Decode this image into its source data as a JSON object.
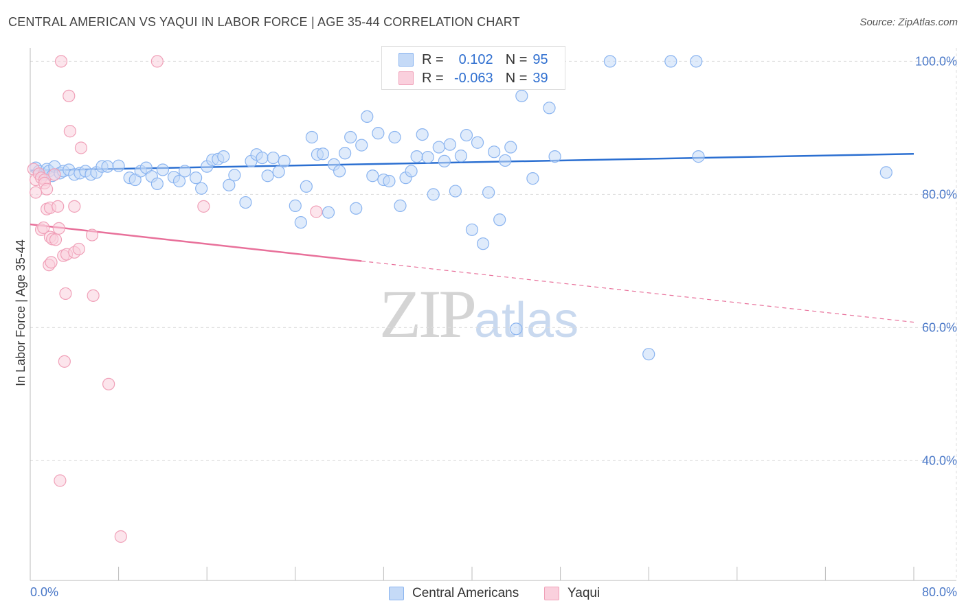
{
  "title": "CENTRAL AMERICAN VS YAQUI IN LABOR FORCE | AGE 35-44 CORRELATION CHART",
  "source": "Source: ZipAtlas.com",
  "legend_top": [
    {
      "r_label": "R =",
      "r_value": "0.102",
      "n_label": "N =",
      "n_value": "95",
      "color": "#8ab4f0",
      "fill": "#c5daf7"
    },
    {
      "r_label": "R =",
      "r_value": "-0.063",
      "n_label": "N =",
      "n_value": "39",
      "color": "#f0a0b8",
      "fill": "#fad0dd"
    }
  ],
  "legend_bottom": [
    "Central Americans",
    "Yaqui"
  ],
  "watermark": {
    "zip": "ZIP",
    "atlas": "atlas"
  },
  "colors": {
    "blue_stroke": "#8ab4f0",
    "blue_fill": "#c5daf7",
    "blue_line": "#2b6fd1",
    "pink_stroke": "#f0a0b8",
    "pink_fill": "#fad0dd",
    "pink_line": "#e8709a",
    "grid": "#dddddd",
    "tick_text": "#4a78c8"
  },
  "chart_data": {
    "type": "scatter",
    "title": "CENTRAL AMERICAN VS YAQUI IN LABOR FORCE | AGE 35-44 CORRELATION CHART",
    "xlabel": "",
    "ylabel": "In Labor Force | Age 35-44",
    "xlim": [
      0,
      80
    ],
    "ylim": [
      22,
      102
    ],
    "x_ticks_labels": [
      "0.0%",
      "80.0%"
    ],
    "y_ticks": [
      40,
      60,
      80,
      100
    ],
    "y_ticks_labels": [
      "40.0%",
      "60.0%",
      "80.0%",
      "100.0%"
    ],
    "grid": true,
    "series": [
      {
        "name": "Central Americans",
        "r": 0.102,
        "n": 95,
        "trend": {
          "x0": 0,
          "y0": 83.6,
          "x1": 80,
          "y1": 86.1,
          "dashed_from": null
        },
        "points": [
          [
            0.5,
            84.0
          ],
          [
            0.8,
            83.5
          ],
          [
            1.2,
            83.0
          ],
          [
            1.5,
            83.8
          ],
          [
            1.7,
            83.5
          ],
          [
            2.0,
            82.8
          ],
          [
            2.2,
            84.2
          ],
          [
            2.7,
            83.2
          ],
          [
            3.0,
            83.5
          ],
          [
            3.5,
            83.7
          ],
          [
            4.0,
            83.0
          ],
          [
            4.5,
            83.2
          ],
          [
            5.0,
            83.5
          ],
          [
            5.5,
            83.0
          ],
          [
            6.0,
            83.3
          ],
          [
            6.5,
            84.2
          ],
          [
            7.0,
            84.2
          ],
          [
            8.0,
            84.3
          ],
          [
            9.0,
            82.5
          ],
          [
            9.5,
            82.2
          ],
          [
            10.0,
            83.5
          ],
          [
            10.5,
            84.0
          ],
          [
            11.0,
            82.7
          ],
          [
            11.5,
            81.6
          ],
          [
            12.0,
            83.7
          ],
          [
            13.0,
            82.6
          ],
          [
            13.5,
            82.0
          ],
          [
            14.0,
            83.5
          ],
          [
            15.0,
            82.5
          ],
          [
            15.5,
            80.9
          ],
          [
            16.0,
            84.2
          ],
          [
            16.5,
            85.2
          ],
          [
            17.0,
            85.3
          ],
          [
            17.5,
            85.7
          ],
          [
            18.0,
            81.4
          ],
          [
            18.5,
            82.9
          ],
          [
            19.5,
            78.8
          ],
          [
            20.0,
            85.0
          ],
          [
            20.5,
            86.0
          ],
          [
            21.0,
            85.5
          ],
          [
            21.5,
            82.8
          ],
          [
            22.0,
            85.5
          ],
          [
            22.5,
            83.4
          ],
          [
            23.0,
            85.0
          ],
          [
            24.0,
            78.3
          ],
          [
            24.5,
            75.8
          ],
          [
            25.0,
            81.2
          ],
          [
            25.5,
            88.6
          ],
          [
            26.0,
            86.0
          ],
          [
            26.5,
            86.1
          ],
          [
            27.0,
            77.3
          ],
          [
            27.5,
            84.5
          ],
          [
            28.0,
            83.5
          ],
          [
            28.5,
            86.2
          ],
          [
            29.0,
            88.6
          ],
          [
            29.5,
            77.9
          ],
          [
            30.0,
            87.4
          ],
          [
            30.5,
            91.7
          ],
          [
            31.0,
            82.8
          ],
          [
            31.5,
            89.2
          ],
          [
            32.0,
            82.2
          ],
          [
            32.5,
            82.0
          ],
          [
            33.0,
            88.6
          ],
          [
            33.5,
            78.3
          ],
          [
            34.0,
            82.5
          ],
          [
            34.5,
            83.5
          ],
          [
            35.0,
            85.7
          ],
          [
            35.5,
            89.0
          ],
          [
            36.0,
            85.6
          ],
          [
            36.5,
            80.0
          ],
          [
            37.0,
            87.1
          ],
          [
            37.5,
            85.0
          ],
          [
            38.0,
            87.5
          ],
          [
            38.5,
            80.5
          ],
          [
            39.0,
            85.8
          ],
          [
            39.5,
            88.9
          ],
          [
            40.0,
            74.7
          ],
          [
            40.5,
            87.8
          ],
          [
            41.0,
            72.6
          ],
          [
            41.5,
            80.3
          ],
          [
            42.0,
            86.4
          ],
          [
            42.5,
            76.2
          ],
          [
            43.0,
            85.1
          ],
          [
            43.5,
            87.1
          ],
          [
            44.0,
            59.8
          ],
          [
            44.5,
            94.8
          ],
          [
            45.5,
            82.4
          ],
          [
            47.0,
            93.0
          ],
          [
            47.5,
            85.7
          ],
          [
            52.5,
            100.0
          ],
          [
            56.0,
            56.0
          ],
          [
            58.0,
            100.0
          ],
          [
            60.3,
            100.0
          ],
          [
            60.5,
            85.7
          ],
          [
            77.5,
            83.3
          ]
        ]
      },
      {
        "name": "Yaqui",
        "r": -0.063,
        "n": 39,
        "trend": {
          "x0": 0,
          "y0": 75.5,
          "x1": 80,
          "y1": 60.8,
          "dashed_from": 30
        },
        "points": [
          [
            0.3,
            83.8
          ],
          [
            0.5,
            82.2
          ],
          [
            0.5,
            80.3
          ],
          [
            0.8,
            83.1
          ],
          [
            1.0,
            82.5
          ],
          [
            1.0,
            74.7
          ],
          [
            1.2,
            75.0
          ],
          [
            1.3,
            82.2
          ],
          [
            1.3,
            81.7
          ],
          [
            1.5,
            80.8
          ],
          [
            1.5,
            77.8
          ],
          [
            1.7,
            69.4
          ],
          [
            1.8,
            78.0
          ],
          [
            1.8,
            73.6
          ],
          [
            1.9,
            69.8
          ],
          [
            2.0,
            73.3
          ],
          [
            2.2,
            83.0
          ],
          [
            2.3,
            73.2
          ],
          [
            2.5,
            78.2
          ],
          [
            2.6,
            74.9
          ],
          [
            2.7,
            37.0
          ],
          [
            2.8,
            100.0
          ],
          [
            3.0,
            70.8
          ],
          [
            3.1,
            54.9
          ],
          [
            3.2,
            65.1
          ],
          [
            3.3,
            71.0
          ],
          [
            3.5,
            94.8
          ],
          [
            3.6,
            89.5
          ],
          [
            4.0,
            78.2
          ],
          [
            4.0,
            71.3
          ],
          [
            4.4,
            71.8
          ],
          [
            4.6,
            87.0
          ],
          [
            5.6,
            73.9
          ],
          [
            5.7,
            64.8
          ],
          [
            7.1,
            51.5
          ],
          [
            8.2,
            28.6
          ],
          [
            11.5,
            100.0
          ],
          [
            15.7,
            78.2
          ],
          [
            25.9,
            77.4
          ]
        ]
      }
    ]
  }
}
